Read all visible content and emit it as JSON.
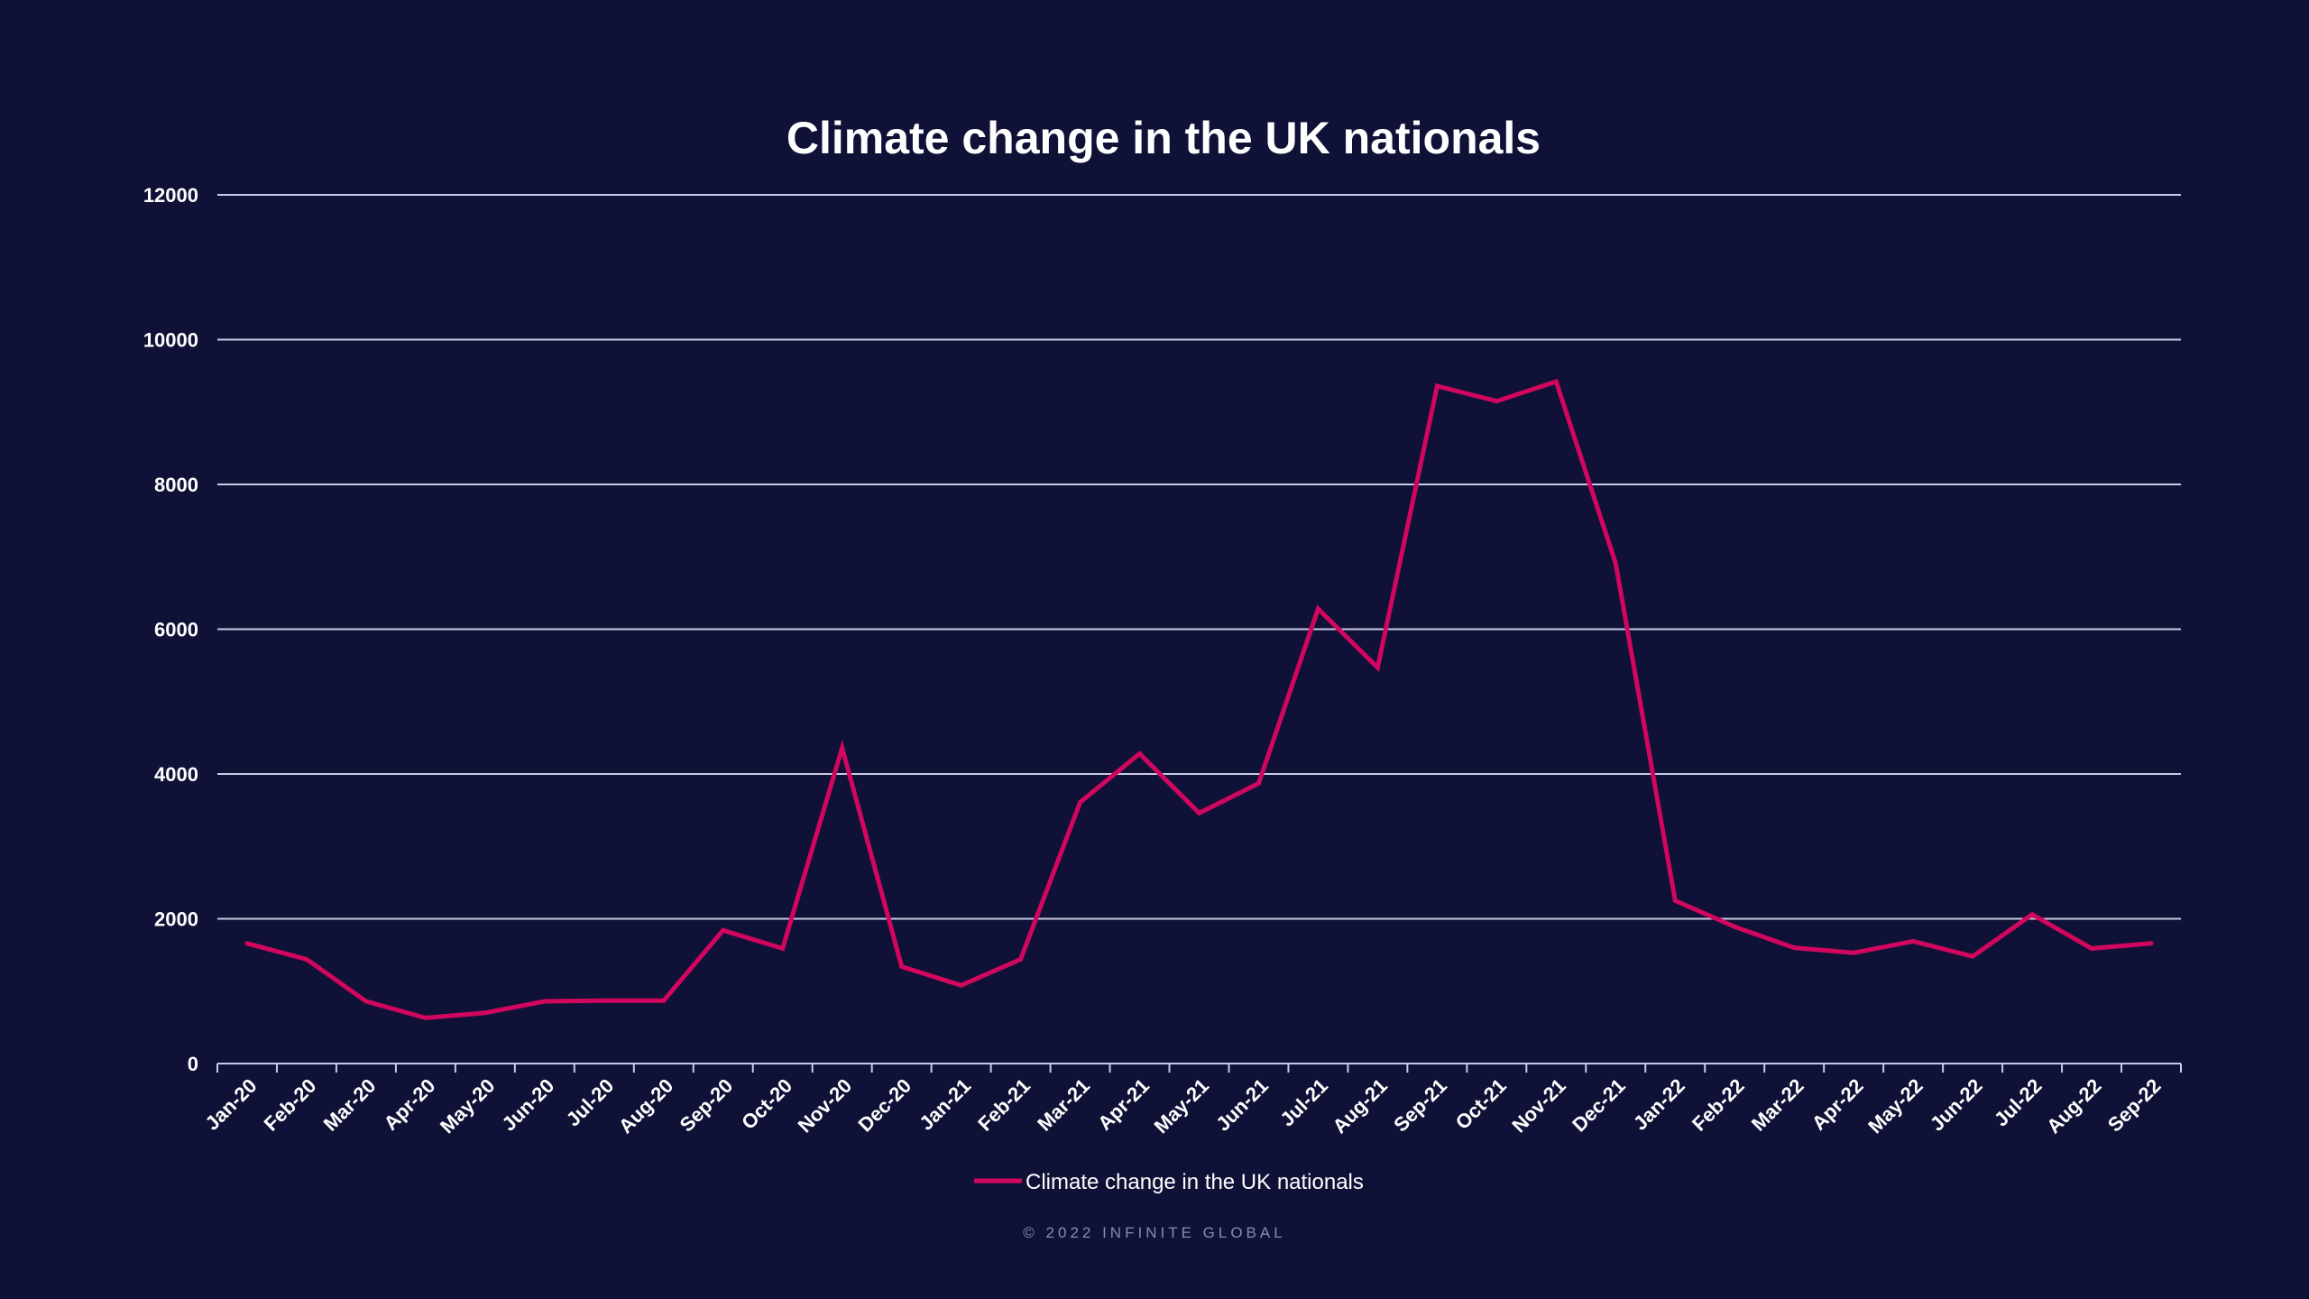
{
  "colors": {
    "background": "#0f1136",
    "series_line": "#d1075f",
    "gridline": "#c9cbe6",
    "text": "#ffffff",
    "footer_text": "#8a8cae"
  },
  "footer": {
    "text": "© 2022 INFINITE GLOBAL"
  },
  "chart_data": {
    "type": "line",
    "title": "Climate change in the UK nationals",
    "xlabel": "",
    "ylabel": "",
    "ylim": [
      0,
      12000
    ],
    "yticks": [
      0,
      2000,
      4000,
      6000,
      8000,
      10000,
      12000
    ],
    "grid": true,
    "legend_position": "bottom-center",
    "categories": [
      "Jan-20",
      "Feb-20",
      "Mar-20",
      "Apr-20",
      "May-20",
      "Jun-20",
      "Jul-20",
      "Aug-20",
      "Sep-20",
      "Oct-20",
      "Nov-20",
      "Dec-20",
      "Jan-21",
      "Feb-21",
      "Mar-21",
      "Apr-21",
      "May-21",
      "Jun-21",
      "Jul-21",
      "Aug-21",
      "Sep-21",
      "Oct-21",
      "Nov-21",
      "Dec-21",
      "Jan-22",
      "Feb-22",
      "Mar-22",
      "Apr-22",
      "May-22",
      "Jun-22",
      "Jul-22",
      "Aug-22",
      "Sep-22"
    ],
    "series": [
      {
        "name": "Climate change in the UK nationals",
        "values": [
          1660,
          1440,
          860,
          630,
          700,
          860,
          870,
          870,
          1840,
          1590,
          4360,
          1340,
          1080,
          1440,
          3610,
          4280,
          3460,
          3870,
          6280,
          5470,
          9360,
          9150,
          9420,
          6910,
          2250,
          1890,
          1600,
          1530,
          1690,
          1480,
          2060,
          1590,
          1660
        ]
      }
    ]
  }
}
